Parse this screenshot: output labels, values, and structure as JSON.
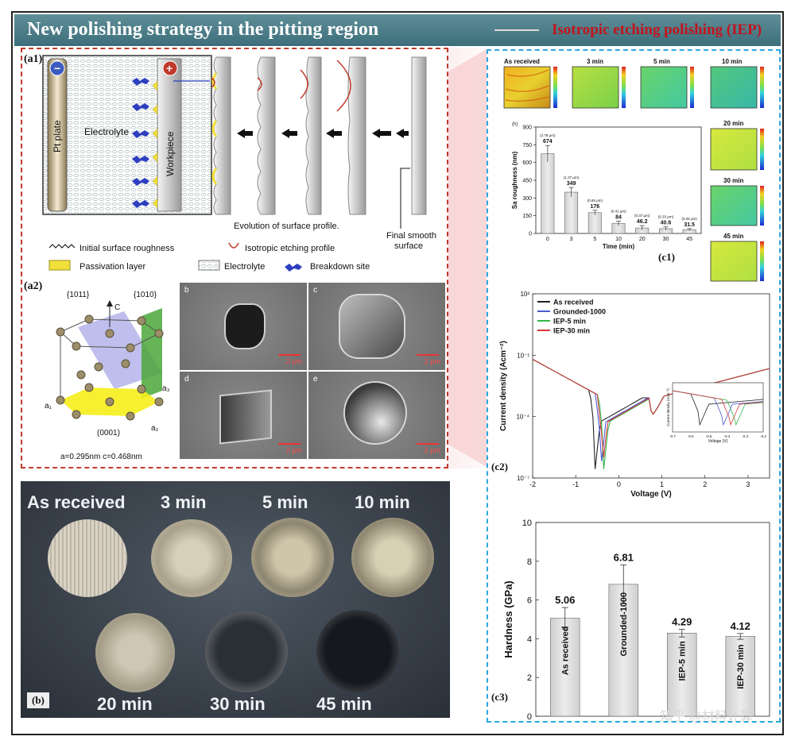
{
  "header": {
    "title": "New polishing strategy in the pitting region",
    "subtitle": "Isotropic etching polishing (IEP)"
  },
  "panel_a1": {
    "label": "(a1)",
    "pt_plate": "Pt plate",
    "electrolyte": "Electrolyte",
    "workpiece": "Workpiece",
    "minus": "−",
    "plus": "+",
    "evolution": "Evolution of surface profile.",
    "final_line1": "Final smooth",
    "final_line2": "surface",
    "legend": {
      "roughness": "Initial surface roughness",
      "etching": "Isotropic etching profile",
      "passivation": "Passivation layer",
      "electrolyte": "Electrolyte",
      "breakdown": "Breakdown site"
    }
  },
  "panel_a2": {
    "label": "(a2)",
    "plane1": "{1011}",
    "plane2": "{1010}",
    "c_axis": "C",
    "a1": "a₁",
    "a2": "a₂",
    "a3": "a₃",
    "basal": "(0001)",
    "params": "a=0.295nm   c=0.468nm",
    "sem": [
      {
        "tag": "b",
        "scale": "2 μm"
      },
      {
        "tag": "c",
        "scale": "2 μm"
      },
      {
        "tag": "d",
        "scale": "2 μm"
      },
      {
        "tag": "e",
        "scale": "2 μm"
      }
    ]
  },
  "panel_b": {
    "label": "(b)",
    "samples": [
      "As received",
      "3 min",
      "5 min",
      "10 min",
      "20 min",
      "30 min",
      "45 min"
    ]
  },
  "panel_c1": {
    "label": "(c1)",
    "maps_top": [
      "As received",
      "3 min",
      "5 min",
      "10 min"
    ],
    "maps_side": [
      "20 min",
      "30 min",
      "45 min"
    ],
    "sub_h": "(h)"
  },
  "panel_c2": {
    "label": "(c2)"
  },
  "panel_c3": {
    "label": "(c3)"
  },
  "watermark": "知乎 @材料计算",
  "chart_data": [
    {
      "type": "bar",
      "id": "c1-roughness",
      "categories": [
        "0",
        "3",
        "5",
        "10",
        "20",
        "30",
        "45"
      ],
      "values": [
        674,
        349,
        176,
        84,
        46.2,
        40.6,
        31.5
      ],
      "value_labels": [
        "674",
        "349",
        "176",
        "84",
        "46.2",
        "40.6",
        "31.5"
      ],
      "top_labels": [
        "(2.79 μm)",
        "(1.37 μm)",
        "(0.65 μm)",
        "(0.41 μm)",
        "(0.37 μm)",
        "(0.33 μm)",
        "(0.26 μm)"
      ],
      "errors": [
        70,
        40,
        20,
        20,
        20,
        15,
        10
      ],
      "xlabel": "Time (min)",
      "ylabel": "Sa roughness (nm)",
      "ylim": [
        0,
        900
      ],
      "yticks": [
        0,
        150,
        300,
        450,
        600,
        750,
        900
      ]
    },
    {
      "type": "line",
      "id": "c2-polarization",
      "xlabel": "Voltage (V)",
      "ylabel": "Current density (Acm⁻²)",
      "xlim": [
        -2,
        3.5
      ],
      "xticks": [
        "-2",
        "-1",
        "0",
        "1",
        "2",
        "3"
      ],
      "yscale": "log",
      "ylim": [
        1e-07,
        100.0
      ],
      "ytick_labels": [
        "10²",
        "10⁻¹",
        "10⁻⁴",
        "10⁻⁷"
      ],
      "ytick_values": [
        100,
        0.1,
        0.0001,
        1e-07
      ],
      "legend_position": "top-left",
      "series": [
        {
          "name": "As received",
          "color": "#222222",
          "ecorr": -0.55
        },
        {
          "name": "Grounded-1000",
          "color": "#4a5bd0",
          "ecorr": -0.42
        },
        {
          "name": "IEP-5 min",
          "color": "#33b84a",
          "ecorr": -0.35
        },
        {
          "name": "IEP-30 min",
          "color": "#d23a3a",
          "ecorr": -0.38
        }
      ],
      "inset": {
        "xlabel": "Voltage (V)",
        "ylabel": "Current density (Acm⁻²)",
        "xticks": [
          "-0.7",
          "-0.6",
          "-0.5",
          "-0.4",
          "-0.3",
          "-0.2"
        ]
      }
    },
    {
      "type": "bar",
      "id": "c3-hardness",
      "categories": [
        "As received",
        "Grounded-1000",
        "IEP-5 min",
        "IEP-30 min"
      ],
      "values": [
        5.06,
        6.81,
        4.29,
        4.12
      ],
      "value_labels": [
        "5.06",
        "6.81",
        "4.29",
        "4.12"
      ],
      "errors": [
        0.55,
        1.0,
        0.2,
        0.15
      ],
      "ylabel": "Hardness (GPa)",
      "ylim": [
        0,
        10
      ],
      "yticks": [
        0,
        2,
        4,
        6,
        8,
        10
      ]
    }
  ]
}
